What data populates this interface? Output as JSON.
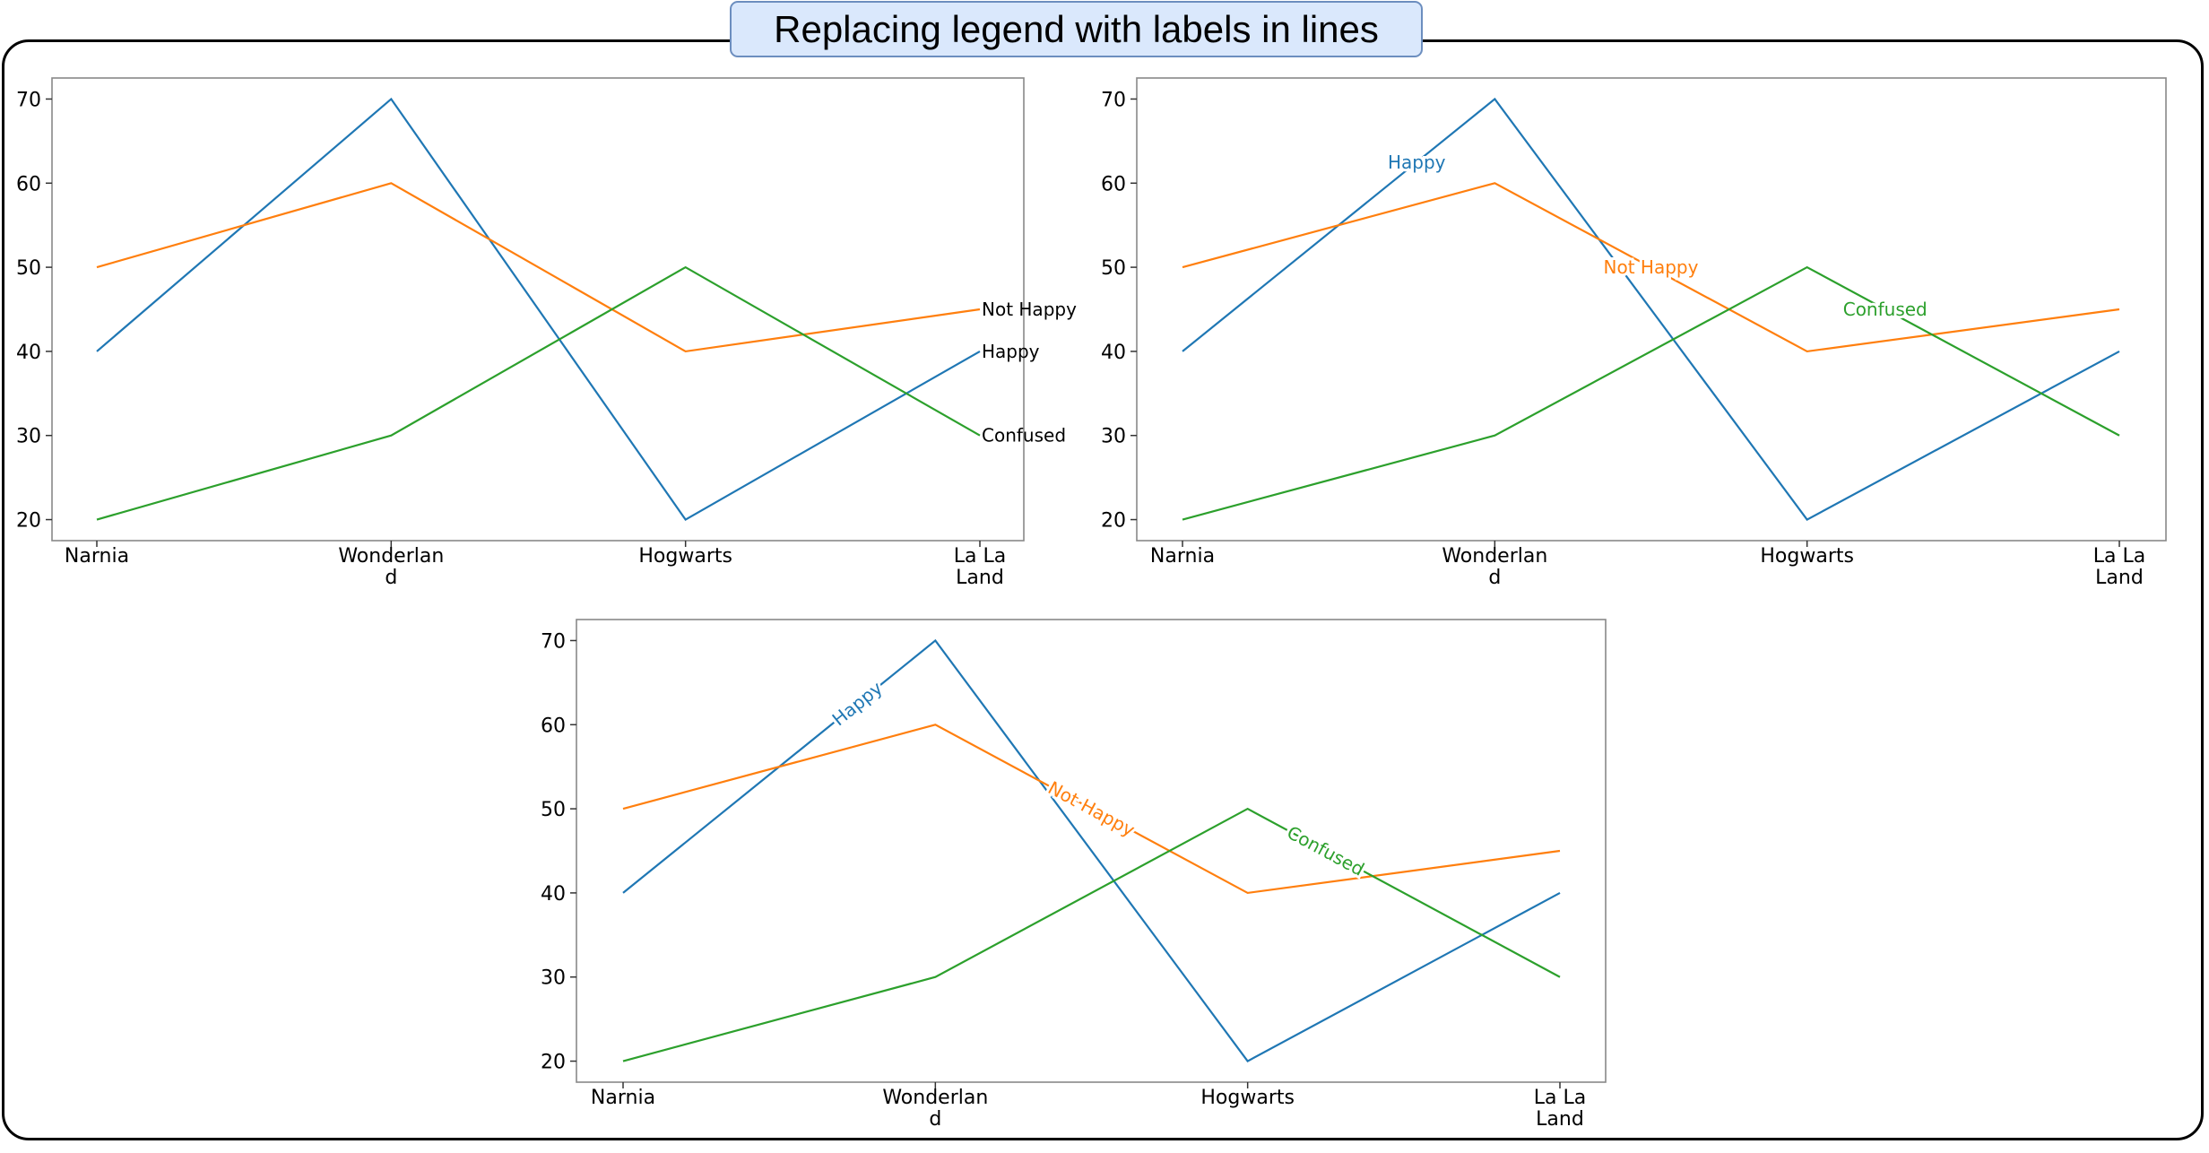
{
  "figure": {
    "title": "Replacing legend with labels in lines"
  },
  "chart_data": [
    {
      "type": "line",
      "label_style": "end",
      "categories": [
        "Narnia",
        "Wonderland",
        "Hogwarts",
        "La La Land"
      ],
      "series": [
        {
          "name": "Happy",
          "values": [
            40,
            70,
            20,
            40
          ],
          "color": "#1f77b4"
        },
        {
          "name": "Not Happy",
          "values": [
            50,
            60,
            40,
            45
          ],
          "color": "#ff7f0e"
        },
        {
          "name": "Confused",
          "values": [
            20,
            30,
            50,
            30
          ],
          "color": "#2ca02c"
        }
      ],
      "y_ticks": [
        20,
        30,
        40,
        50,
        60,
        70
      ],
      "ylim": [
        17.5,
        72.5
      ],
      "grid": false,
      "legend": "none"
    },
    {
      "type": "line",
      "label_style": "inline",
      "categories": [
        "Narnia",
        "Wonderland",
        "Hogwarts",
        "La La Land"
      ],
      "series": [
        {
          "name": "Happy",
          "values": [
            40,
            70,
            20,
            40
          ],
          "color": "#1f77b4"
        },
        {
          "name": "Not Happy",
          "values": [
            50,
            60,
            40,
            45
          ],
          "color": "#ff7f0e"
        },
        {
          "name": "Confused",
          "values": [
            20,
            30,
            50,
            30
          ],
          "color": "#2ca02c"
        }
      ],
      "y_ticks": [
        20,
        30,
        40,
        50,
        60,
        70
      ],
      "ylim": [
        17.5,
        72.5
      ],
      "grid": false,
      "legend": "none"
    },
    {
      "type": "line",
      "label_style": "inline-rotated",
      "categories": [
        "Narnia",
        "Wonderland",
        "Hogwarts",
        "La La Land"
      ],
      "series": [
        {
          "name": "Happy",
          "values": [
            40,
            70,
            20,
            40
          ],
          "color": "#1f77b4"
        },
        {
          "name": "Not Happy",
          "values": [
            50,
            60,
            40,
            45
          ],
          "color": "#ff7f0e"
        },
        {
          "name": "Confused",
          "values": [
            20,
            30,
            50,
            30
          ],
          "color": "#2ca02c"
        }
      ],
      "y_ticks": [
        20,
        30,
        40,
        50,
        60,
        70
      ],
      "ylim": [
        17.5,
        72.5
      ],
      "grid": false,
      "legend": "none"
    }
  ]
}
